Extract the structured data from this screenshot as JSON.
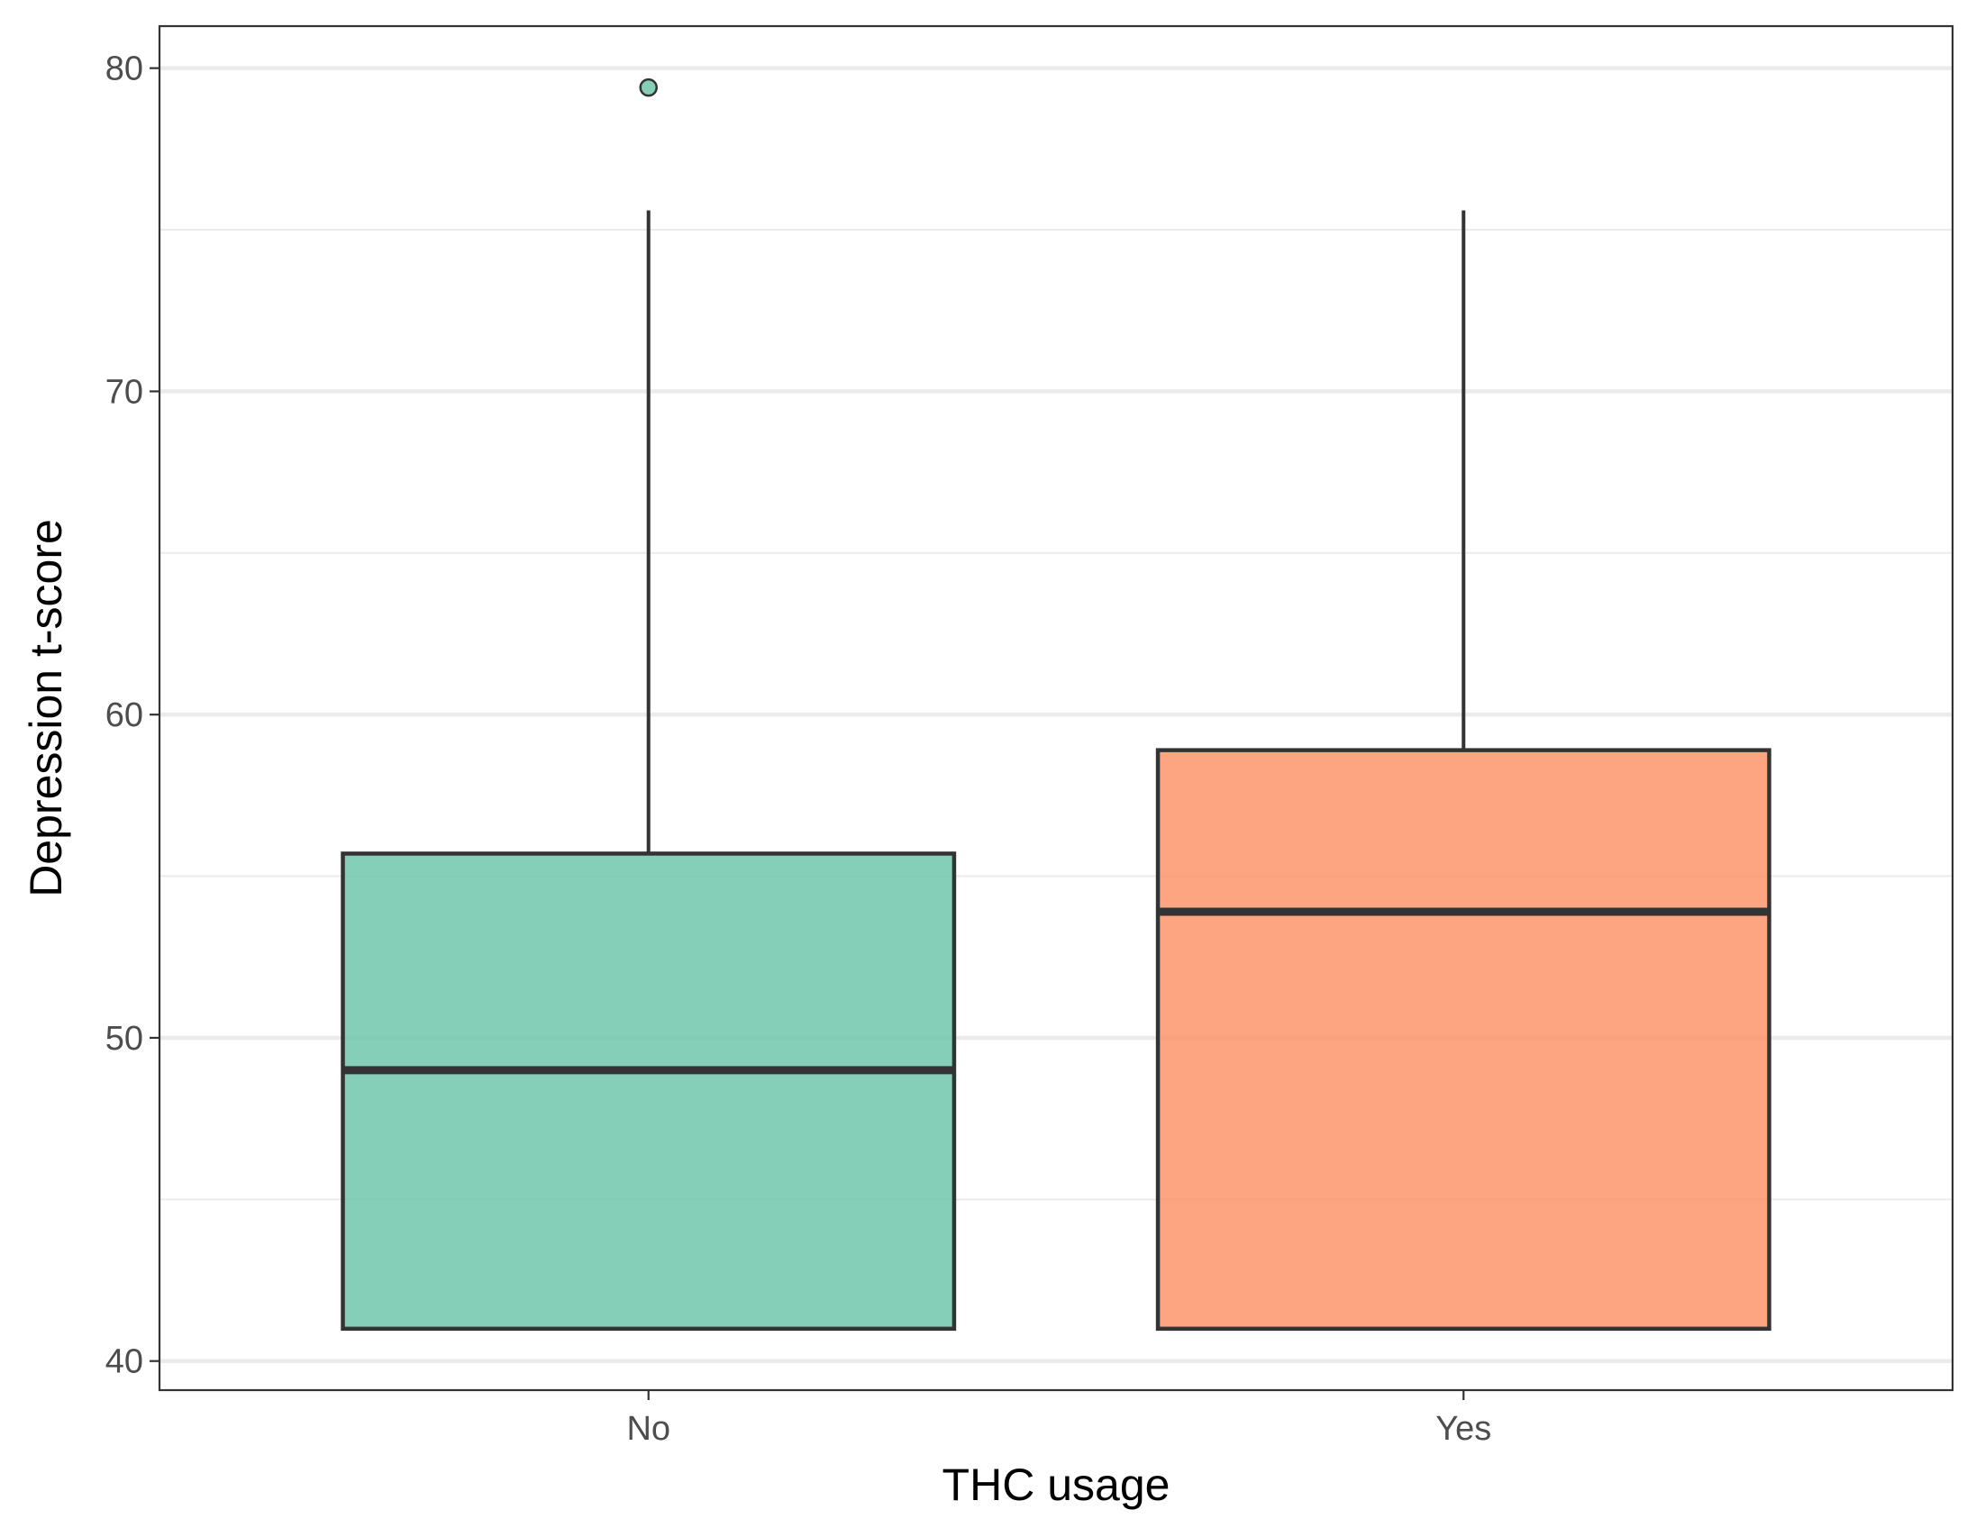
{
  "chart_data": {
    "type": "box",
    "xlabel": "THC usage",
    "ylabel": "Depression t-score",
    "categories": [
      "No",
      "Yes"
    ],
    "ylim": [
      39.1,
      81.3
    ],
    "yticks": [
      40,
      50,
      60,
      70,
      80
    ],
    "grid": true,
    "legend": "none",
    "boxes": [
      {
        "category": "No",
        "color": "#66c2a5",
        "whisker_low": 41.0,
        "q1": 41.0,
        "median": 49.0,
        "q3": 55.7,
        "whisker_high": 75.6,
        "outliers": [
          79.4
        ]
      },
      {
        "category": "Yes",
        "color": "#fc8d62",
        "whisker_low": 41.0,
        "q1": 41.0,
        "median": 53.9,
        "q3": 58.9,
        "whisker_high": 75.6,
        "outliers": []
      }
    ]
  }
}
